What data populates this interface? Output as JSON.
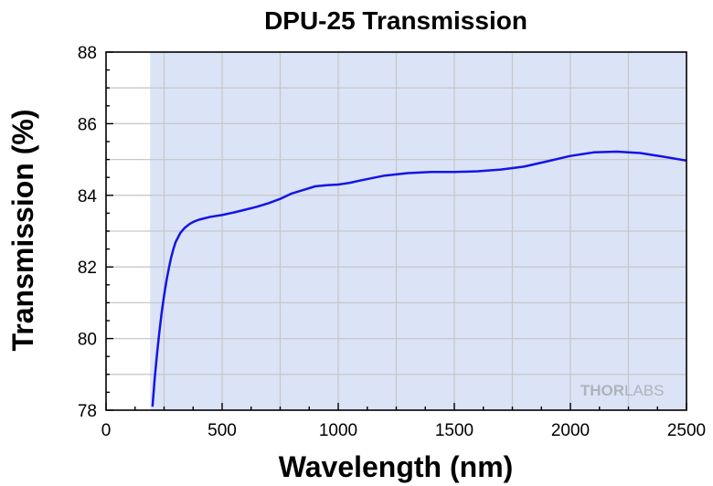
{
  "chart_data": {
    "type": "line",
    "title": "DPU-25 Transmission",
    "xlabel": "Wavelength (nm)",
    "ylabel": "Transmission (%)",
    "xlim": [
      0,
      2500
    ],
    "ylim": [
      78,
      88
    ],
    "xticks": [
      0,
      500,
      1000,
      1500,
      2000,
      2500
    ],
    "yticks": [
      78,
      80,
      82,
      84,
      86,
      88
    ],
    "grid": true,
    "shaded_region_x": [
      190,
      2500
    ],
    "colors": {
      "line": "#1414e6",
      "shade": "#dbe3f7",
      "grid": "#c8c8c8"
    },
    "watermark": {
      "left": "THOR",
      "right": "LABS"
    },
    "series": [
      {
        "x": [
          200,
          210,
          220,
          230,
          240,
          250,
          260,
          270,
          280,
          290,
          300,
          320,
          340,
          360,
          380,
          400,
          450,
          500,
          550,
          600,
          650,
          700,
          750,
          800,
          850,
          900,
          950,
          1000,
          1050,
          1100,
          1200,
          1300,
          1400,
          1500,
          1600,
          1700,
          1800,
          1900,
          2000,
          2100,
          2200,
          2300,
          2400,
          2500
        ],
        "y": [
          78.1,
          78.9,
          79.6,
          80.2,
          80.75,
          81.2,
          81.6,
          81.95,
          82.25,
          82.5,
          82.7,
          82.95,
          83.1,
          83.2,
          83.27,
          83.32,
          83.4,
          83.45,
          83.52,
          83.6,
          83.68,
          83.78,
          83.9,
          84.05,
          84.15,
          84.25,
          84.28,
          84.3,
          84.35,
          84.42,
          84.55,
          84.62,
          84.65,
          84.65,
          84.67,
          84.72,
          84.8,
          84.95,
          85.1,
          85.2,
          85.22,
          85.18,
          85.08,
          84.97
        ]
      }
    ]
  }
}
